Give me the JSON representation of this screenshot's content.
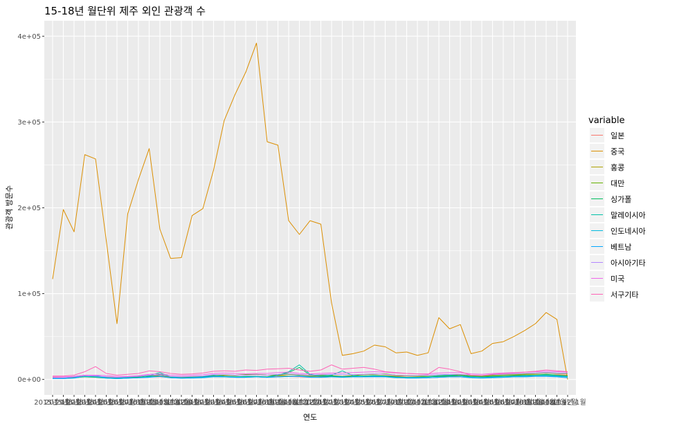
{
  "chart_data": {
    "type": "line",
    "title": "15-18년 월단위 제주 외인 관광객 수",
    "xlabel": "연도",
    "ylabel": "관광객 방문수",
    "ylim": [
      -18000,
      418000
    ],
    "y_ticks": [
      {
        "value": 0,
        "label": "0e+00"
      },
      {
        "value": 100000,
        "label": "1e+05"
      },
      {
        "value": 200000,
        "label": "2e+05"
      },
      {
        "value": 300000,
        "label": "3e+05"
      },
      {
        "value": 400000,
        "label": "4e+05"
      }
    ],
    "x": [
      "2015년 1월",
      "2015년 2월",
      "2015년 3월",
      "2015년 4월",
      "2015년 5월",
      "2015년 6월",
      "2015년 7월",
      "2015년 8월",
      "2015년 9월",
      "2015년 10월",
      "2015년 11월",
      "2015년 12월",
      "2016년 1월",
      "2016년 2월",
      "2016년 3월",
      "2016년 4월",
      "2016년 5월",
      "2016년 6월",
      "2016년 7월",
      "2016년 8월",
      "2016년 9월",
      "2016년 10월",
      "2016년 11월",
      "2016년 12월",
      "2017년 1월",
      "2017년 2월",
      "2017년 3월",
      "2017년 4월",
      "2017년 5월",
      "2017년 6월",
      "2017년 7월",
      "2017년 8월",
      "2017년 9월",
      "2017년 10월",
      "2017년 11월",
      "2017년 12월",
      "2018년 1월",
      "2018년 2월",
      "2018년 3월",
      "2018년 4월",
      "2018년 5월",
      "2018년 6월",
      "2018년 7월",
      "2018년 8월",
      "2018년 9월",
      "2018년 10월",
      "2018년 11월",
      "2018년 12월",
      "2019년 1월"
    ],
    "legend": {
      "title": "variable",
      "position": "right"
    },
    "grid": true,
    "series": [
      {
        "name": "일본",
        "color": "#F8766D",
        "values": [
          2500,
          2000,
          2500,
          3000,
          3000,
          3000,
          2500,
          2500,
          2500,
          3000,
          3000,
          2500,
          2500,
          2500,
          3000,
          3000,
          3000,
          3000,
          3000,
          3000,
          3000,
          3500,
          3500,
          3000,
          2500,
          3000,
          3000,
          3500,
          3500,
          3500,
          3500,
          3500,
          3500,
          4000,
          4000,
          3500,
          3500,
          3500,
          4000,
          4000,
          4500,
          4000,
          4000,
          4000,
          4500,
          5000,
          5000,
          5500,
          5000
        ]
      },
      {
        "name": "중국",
        "color": "#DB8E00",
        "values": [
          117000,
          198000,
          172000,
          262000,
          257000,
          162000,
          65000,
          193000,
          233000,
          269000,
          175000,
          141000,
          142000,
          191000,
          199000,
          244000,
          302000,
          332000,
          358000,
          392000,
          277000,
          273000,
          185000,
          169000,
          185000,
          181000,
          89000,
          28000,
          30000,
          33000,
          40000,
          38000,
          31000,
          32000,
          28000,
          31000,
          72000,
          59000,
          64000,
          30000,
          33000,
          42000,
          44000,
          50000,
          57000,
          65000,
          78000,
          70000,
          0
        ]
      },
      {
        "name": "홍콩",
        "color": "#AEA200",
        "values": [
          2000,
          1500,
          2500,
          3500,
          3000,
          2500,
          1500,
          2500,
          3500,
          4500,
          3500,
          2500,
          2500,
          3000,
          3500,
          4000,
          4500,
          5000,
          5500,
          6000,
          5000,
          4500,
          4000,
          3500,
          3500,
          4000,
          3500,
          3000,
          3500,
          4000,
          4500,
          4500,
          4000,
          4000,
          3500,
          3500,
          4000,
          4000,
          4500,
          3500,
          3500,
          4000,
          4500,
          5000,
          5500,
          5500,
          5500,
          5000,
          4500
        ]
      },
      {
        "name": "대만",
        "color": "#64B200",
        "values": [
          1500,
          1500,
          2000,
          3500,
          3000,
          2500,
          2000,
          2000,
          3000,
          5000,
          4000,
          3000,
          2500,
          3000,
          3500,
          4500,
          5000,
          4500,
          5500,
          5500,
          5000,
          5000,
          6000,
          5000,
          4500,
          5000,
          4500,
          3500,
          4500,
          5500,
          6000,
          6500,
          5000,
          4500,
          4000,
          3500,
          4500,
          5000,
          5500,
          4000,
          4000,
          5000,
          5500,
          6000,
          6500,
          7000,
          7500,
          7000,
          6500
        ]
      },
      {
        "name": "싱가폴",
        "color": "#00BD5C",
        "values": [
          1000,
          1000,
          2000,
          3000,
          2500,
          1500,
          1000,
          1500,
          2500,
          3500,
          6000,
          3000,
          1500,
          2000,
          2500,
          3500,
          3000,
          3000,
          3500,
          3500,
          3000,
          5000,
          8000,
          14000,
          5000,
          3500,
          4000,
          3000,
          3500,
          4000,
          4500,
          4000,
          3000,
          2500,
          2500,
          3000,
          3500,
          4000,
          4500,
          3500,
          3000,
          3500,
          4000,
          4500,
          5000,
          5000,
          6000,
          5000,
          4000
        ]
      },
      {
        "name": "말레이시아",
        "color": "#00C1A7",
        "values": [
          1500,
          1500,
          3500,
          5000,
          4000,
          2000,
          1500,
          2500,
          3500,
          4500,
          8000,
          3000,
          2000,
          2500,
          3000,
          5000,
          3500,
          3000,
          3000,
          3000,
          2500,
          5000,
          9000,
          17000,
          6000,
          4000,
          5000,
          10000,
          4500,
          3500,
          4000,
          3000,
          2000,
          2000,
          2500,
          3000,
          4500,
          5000,
          4500,
          2500,
          2000,
          3000,
          3500,
          4000,
          4500,
          5000,
          5000,
          4500,
          3500
        ]
      },
      {
        "name": "인도네시아",
        "color": "#00BADE",
        "values": [
          1000,
          1000,
          1500,
          3500,
          3000,
          1500,
          1000,
          1500,
          2000,
          3000,
          3500,
          2000,
          1500,
          1500,
          2000,
          3000,
          3000,
          2500,
          2500,
          3000,
          2500,
          3000,
          3500,
          4000,
          3000,
          2500,
          3000,
          2500,
          3000,
          3000,
          3500,
          3500,
          2500,
          1500,
          1500,
          2000,
          2500,
          3000,
          3000,
          2000,
          1500,
          2000,
          2500,
          3000,
          3500,
          4000,
          4000,
          3500,
          3000
        ]
      },
      {
        "name": "베트남",
        "color": "#00A6FF",
        "values": [
          1000,
          1000,
          2000,
          5000,
          5000,
          2000,
          1000,
          1500,
          2000,
          2500,
          3500,
          2000,
          1500,
          2000,
          2500,
          3500,
          3000,
          2500,
          2500,
          3000,
          2500,
          3000,
          3500,
          3500,
          2500,
          2500,
          3000,
          3000,
          3000,
          3000,
          3000,
          3000,
          2500,
          2000,
          2000,
          2000,
          2500,
          3000,
          3000,
          2500,
          2000,
          2500,
          2500,
          3000,
          3000,
          3500,
          3500,
          3000,
          2000
        ]
      },
      {
        "name": "아시아기타",
        "color": "#B385FF",
        "values": [
          2000,
          2000,
          3000,
          4500,
          4000,
          3000,
          2500,
          3000,
          3500,
          5000,
          5000,
          3500,
          3000,
          3500,
          4000,
          5500,
          5500,
          5000,
          5000,
          5500,
          5000,
          6000,
          6500,
          5500,
          5000,
          5500,
          6000,
          5500,
          5500,
          6000,
          6500,
          6000,
          5000,
          4500,
          4500,
          5000,
          5500,
          6000,
          6000,
          5000,
          4500,
          5500,
          6000,
          6500,
          7000,
          7500,
          8000,
          7500,
          7000
        ]
      },
      {
        "name": "미국",
        "color": "#EF67EB",
        "values": [
          3000,
          3000,
          3500,
          5000,
          5000,
          4500,
          3500,
          3500,
          4500,
          6000,
          6500,
          5000,
          4500,
          5000,
          5500,
          7000,
          7500,
          7000,
          6500,
          7000,
          7000,
          8000,
          8500,
          7000,
          6500,
          7000,
          7500,
          7500,
          8000,
          8500,
          9000,
          8500,
          7500,
          7000,
          6500,
          6500,
          7500,
          8000,
          8000,
          6500,
          6000,
          7000,
          7500,
          8000,
          8500,
          9000,
          9500,
          9000,
          8500
        ]
      },
      {
        "name": "서구기타",
        "color": "#FF63B6",
        "values": [
          4000,
          4000,
          5000,
          9000,
          15000,
          7000,
          5000,
          6000,
          7000,
          10000,
          9000,
          7000,
          6000,
          6500,
          7500,
          9500,
          10000,
          9500,
          11000,
          10500,
          12000,
          12500,
          13000,
          11000,
          9500,
          11000,
          17000,
          12000,
          13000,
          14000,
          12000,
          9000,
          8000,
          7000,
          6500,
          6000,
          14000,
          12000,
          9000,
          5000,
          4500,
          6000,
          7000,
          7500,
          8500,
          9500,
          11000,
          10000,
          9000
        ]
      }
    ]
  }
}
